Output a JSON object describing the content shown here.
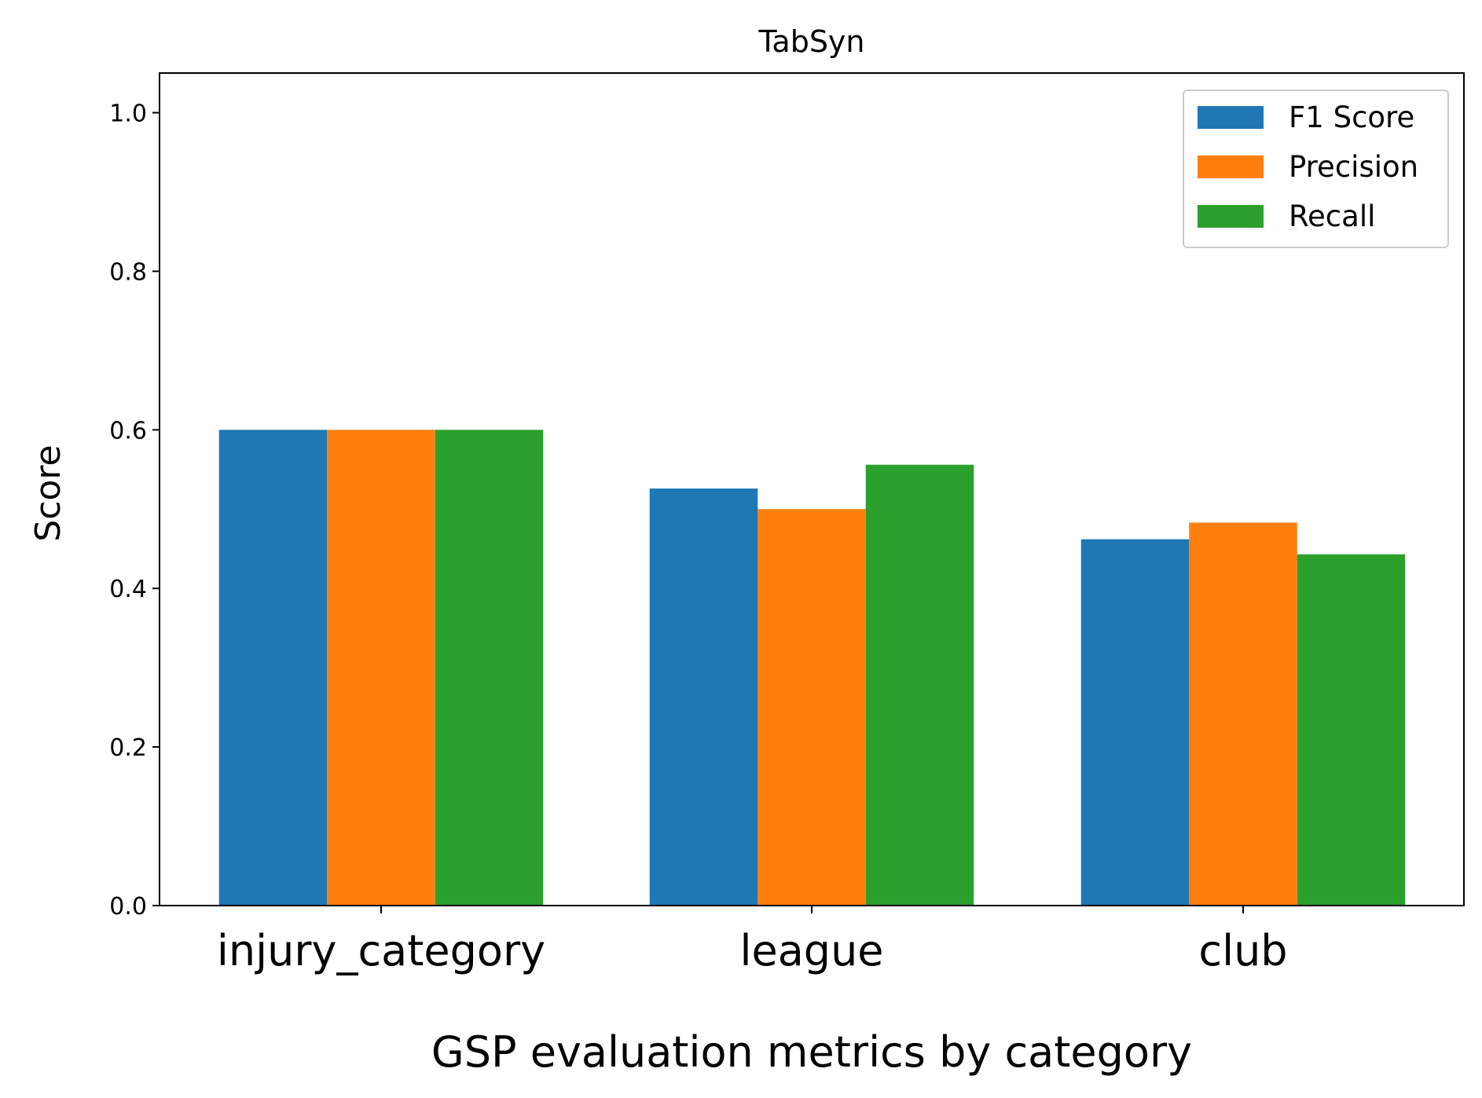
{
  "chart_data": {
    "type": "bar",
    "title": "TabSyn",
    "xlabel": "GSP evaluation metrics by category",
    "ylabel": "Score",
    "categories": [
      "injury_category",
      "league",
      "club"
    ],
    "series": [
      {
        "name": "F1 Score",
        "color": "#1f77b4",
        "values": [
          0.6,
          0.526,
          0.462
        ]
      },
      {
        "name": "Precision",
        "color": "#ff7f0e",
        "values": [
          0.6,
          0.5,
          0.483
        ]
      },
      {
        "name": "Recall",
        "color": "#2ca02c",
        "values": [
          0.6,
          0.556,
          0.443
        ]
      }
    ],
    "ylim": [
      0,
      1.05
    ],
    "yticks": [
      "0.0",
      "0.2",
      "0.4",
      "0.6",
      "0.8",
      "1.0"
    ],
    "grid": false,
    "legend_position": "top-right"
  }
}
